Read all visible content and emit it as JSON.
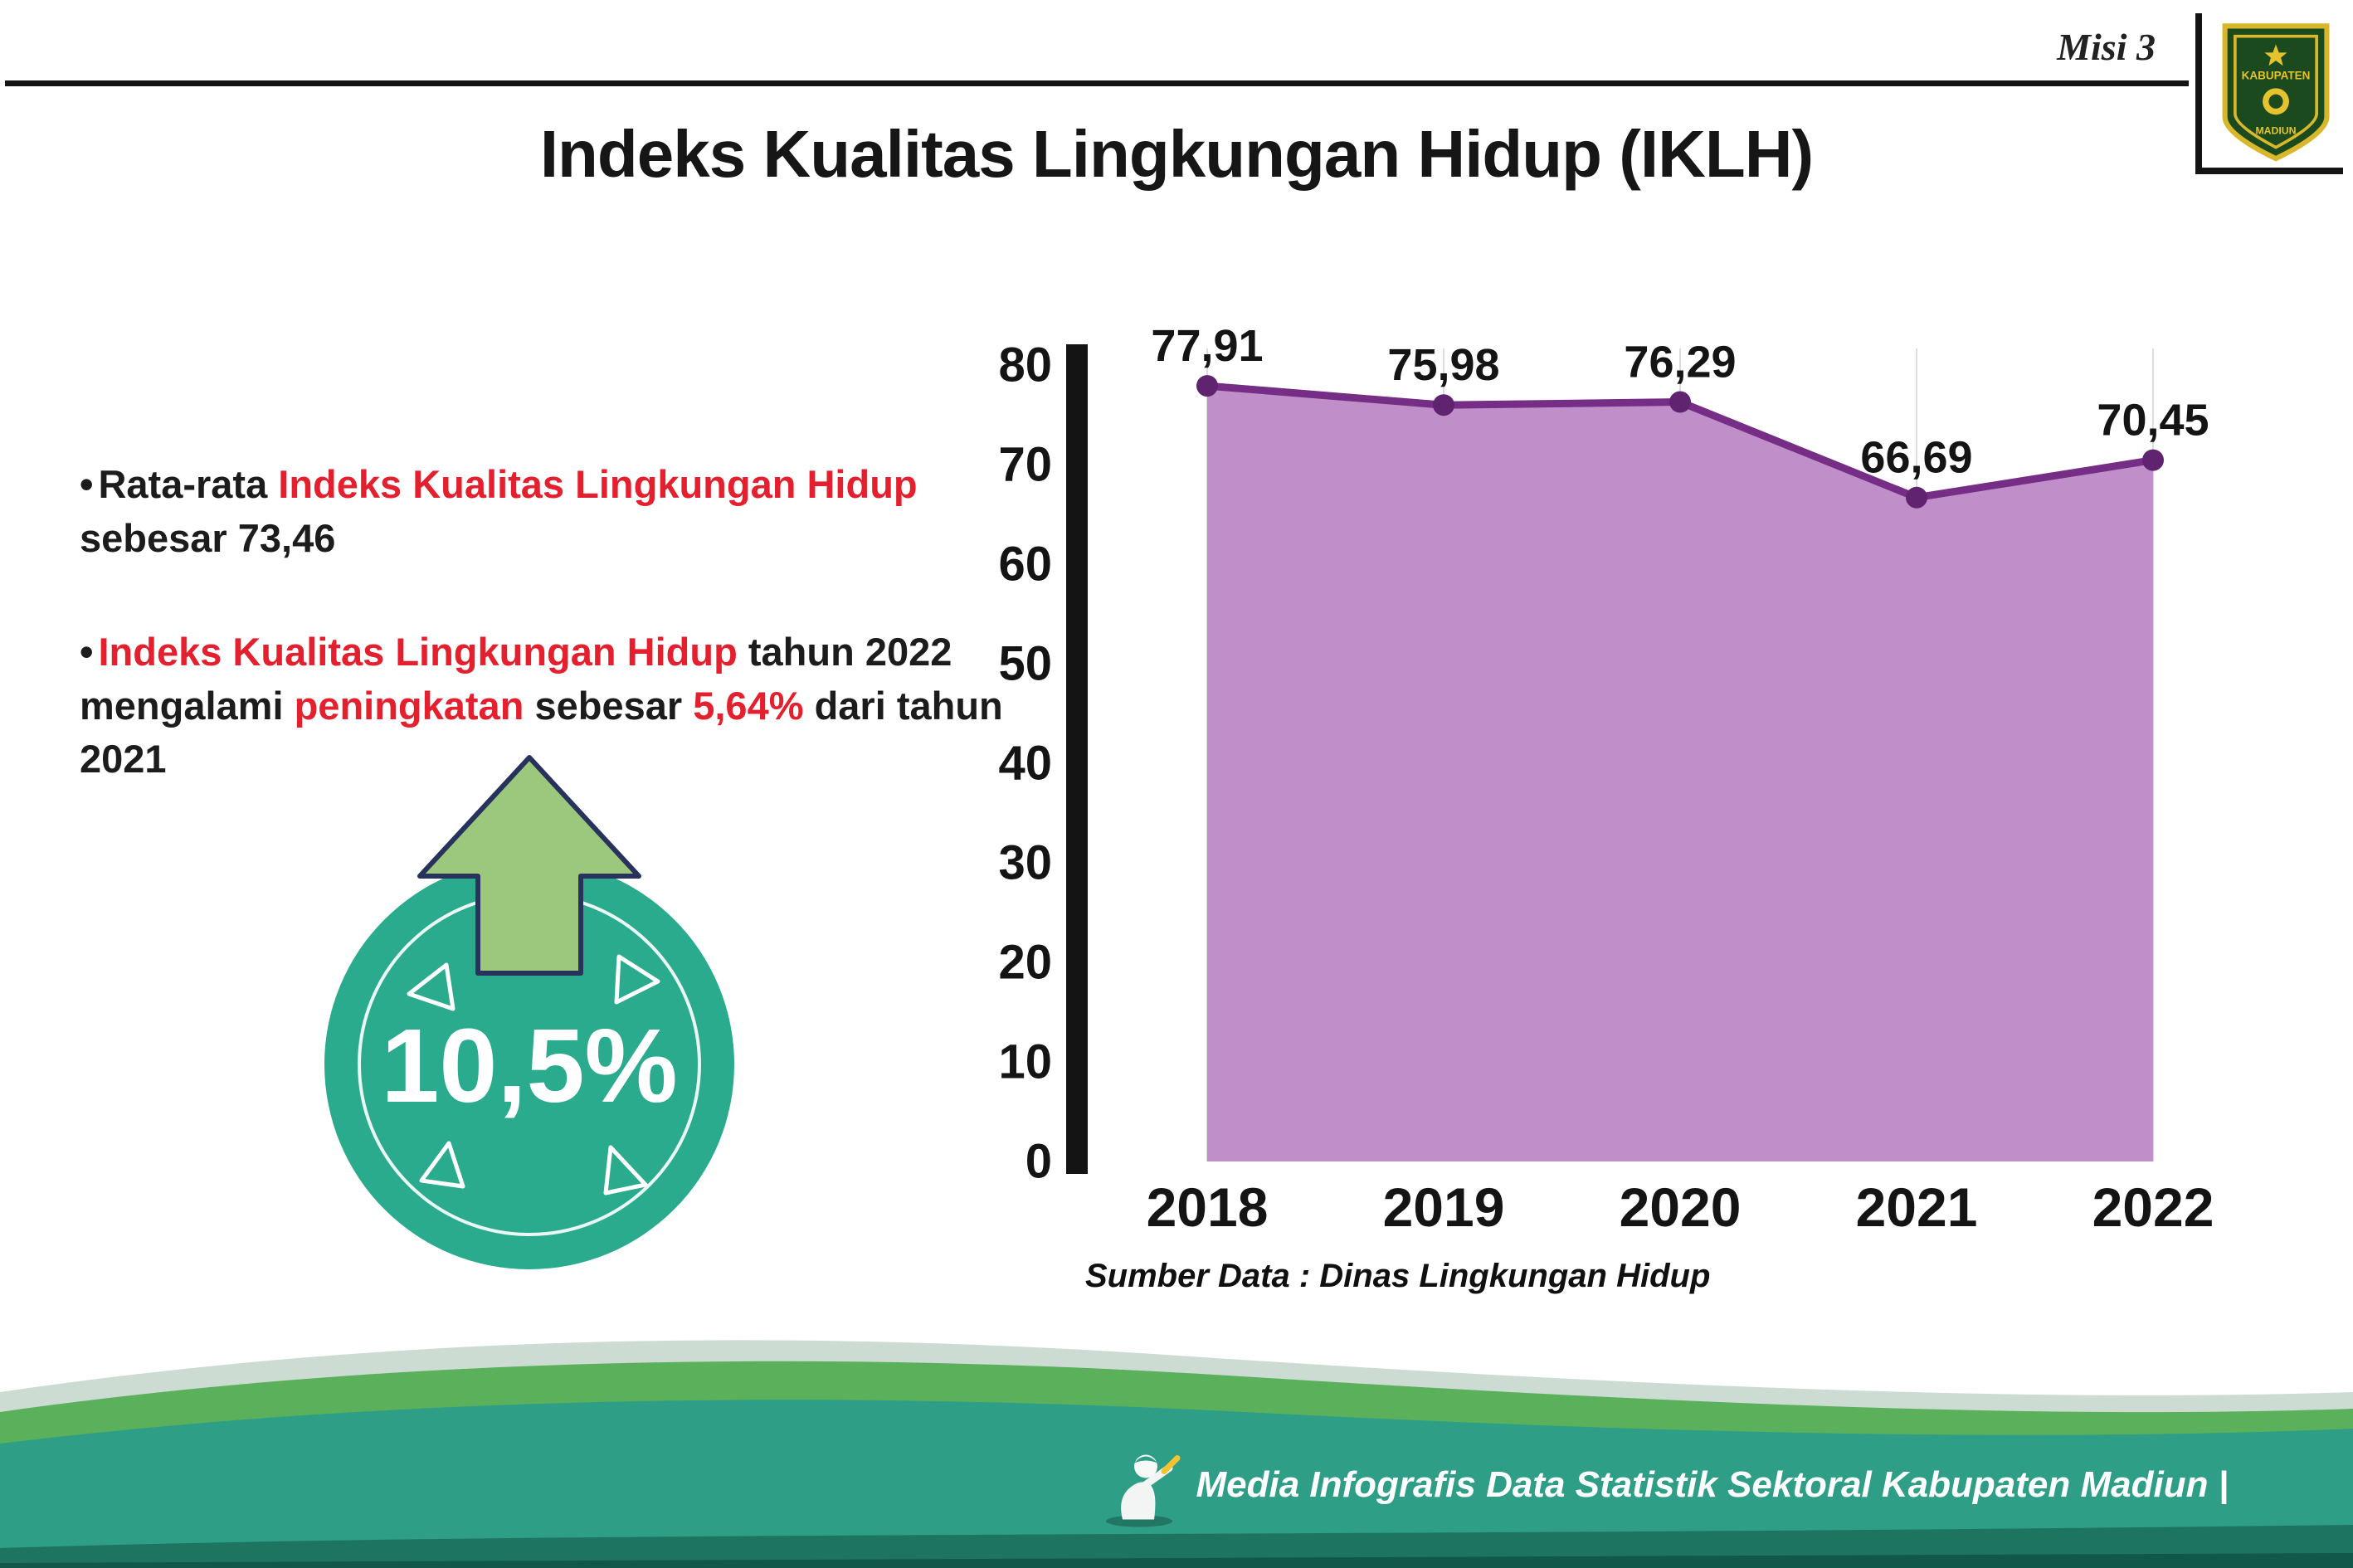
{
  "header": {
    "misi_label": "Misi 3",
    "title": "Indeks Kualitas Lingkungan Hidup (IKLH)",
    "logo_top_text": "KABUPATEN",
    "logo_bottom_text": "MADIUN"
  },
  "bullets": [
    {
      "segments": [
        {
          "text": "Rata-rata ",
          "red": false
        },
        {
          "text": "Indeks Kualitas Lingkungan Hidup",
          "red": true
        },
        {
          "text": " sebesar 73,46",
          "red": false
        }
      ]
    },
    {
      "segments": [
        {
          "text": "Indeks Kualitas Lingkungan Hidup",
          "red": true
        },
        {
          "text": " tahun 2022 mengalami ",
          "red": false
        },
        {
          "text": "peningkatan",
          "red": true
        },
        {
          "text": " sebesar ",
          "red": false
        },
        {
          "text": "5,64%",
          "red": true
        },
        {
          "text": " dari tahun 2021",
          "red": false
        }
      ]
    }
  ],
  "increase_badge": {
    "value": "10,5%"
  },
  "chart_data": {
    "type": "area",
    "categories": [
      "2018",
      "2019",
      "2020",
      "2021",
      "2022"
    ],
    "values": [
      77.91,
      75.98,
      76.29,
      66.69,
      70.45
    ],
    "value_labels": [
      "77,91",
      "75,98",
      "76,29",
      "66,69",
      "70,45"
    ],
    "ylim": [
      0,
      80
    ],
    "yticks": [
      0,
      10,
      20,
      30,
      40,
      50,
      60,
      70,
      80
    ],
    "grid": "vertical-light",
    "legend": "none",
    "line_color": "#762d86",
    "fill_color": "#c08fc9",
    "marker_color": "#5f2370",
    "source": "Sumber Data : Dinas Lingkungan Hidup"
  },
  "footer": {
    "credit": "Media Infografis Data Statistik Sektoral Kabupaten Madiun |"
  },
  "colors": {
    "accent_red": "#e41f2e",
    "badge_green": "#2bab8e",
    "arrow_green": "#9bc87d",
    "arrow_outline": "#27335c",
    "wave_green": "#5bb05b",
    "wave_teal": "#2e9e86"
  }
}
